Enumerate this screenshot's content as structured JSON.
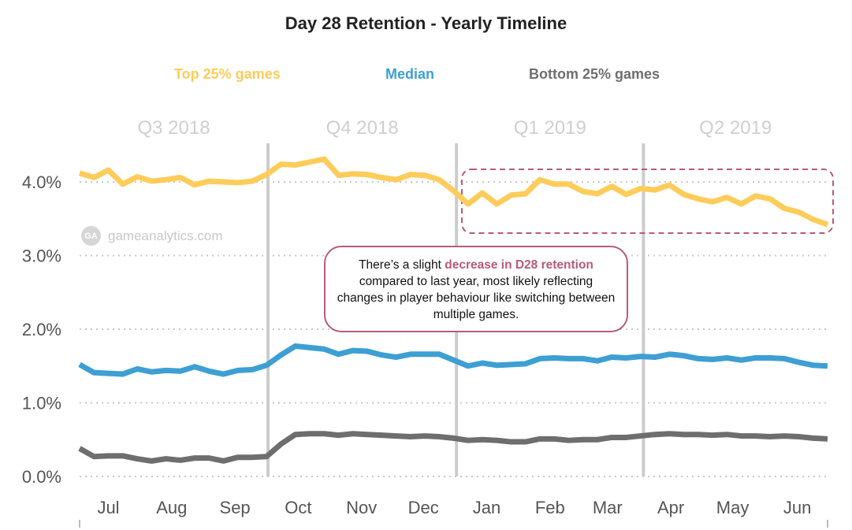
{
  "chart_data": {
    "type": "line",
    "title": "Day 28 Retention - Yearly Timeline",
    "xlabel": "",
    "ylabel": "",
    "ylim": [
      0,
      4.0
    ],
    "yticks": [
      0,
      1,
      2,
      3,
      4
    ],
    "ytick_labels": [
      "0.0%",
      "1.0%",
      "2.0%",
      "3.0%",
      "4.0%"
    ],
    "x_unit": "week index (0 = start of Jul 2018)",
    "x_range": [
      0,
      52
    ],
    "month_labels": [
      {
        "label": "Jul",
        "x": 2.0
      },
      {
        "label": "Aug",
        "x": 6.4
      },
      {
        "label": "Sep",
        "x": 10.8
      },
      {
        "label": "Oct",
        "x": 15.2
      },
      {
        "label": "Nov",
        "x": 19.6
      },
      {
        "label": "Dec",
        "x": 23.9
      },
      {
        "label": "Jan",
        "x": 28.3
      },
      {
        "label": "Feb",
        "x": 32.7
      },
      {
        "label": "Mar",
        "x": 36.7
      },
      {
        "label": "Apr",
        "x": 41.1
      },
      {
        "label": "May",
        "x": 45.4
      },
      {
        "label": "Jun",
        "x": 49.9
      }
    ],
    "quarters": [
      {
        "label": "Q3 2018",
        "start": 0,
        "end": 13.1
      },
      {
        "label": "Q4 2018",
        "start": 13.1,
        "end": 26.2
      },
      {
        "label": "Q1 2019",
        "start": 26.2,
        "end": 39.2
      },
      {
        "label": "Q2 2019",
        "start": 39.2,
        "end": 52
      }
    ],
    "grid": true,
    "legend_position": "top",
    "series": [
      {
        "name": "Top 25% games",
        "color": "#fdcc5a",
        "values": [
          4.12,
          4.06,
          4.16,
          3.97,
          4.07,
          4.01,
          4.03,
          4.06,
          3.96,
          4.01,
          4.0,
          3.99,
          4.01,
          4.1,
          4.24,
          4.23,
          4.27,
          4.31,
          4.09,
          4.11,
          4.1,
          4.06,
          4.03,
          4.1,
          4.09,
          4.03,
          3.88,
          3.7,
          3.85,
          3.7,
          3.82,
          3.84,
          4.03,
          3.97,
          3.97,
          3.87,
          3.84,
          3.94,
          3.83,
          3.91,
          3.89,
          3.96,
          3.83,
          3.77,
          3.73,
          3.79,
          3.7,
          3.81,
          3.77,
          3.64,
          3.59,
          3.49,
          3.42
        ]
      },
      {
        "name": "Median",
        "color": "#3d9fd3",
        "values": [
          1.52,
          1.41,
          1.4,
          1.39,
          1.46,
          1.42,
          1.44,
          1.43,
          1.49,
          1.43,
          1.39,
          1.44,
          1.45,
          1.51,
          1.65,
          1.77,
          1.75,
          1.73,
          1.66,
          1.71,
          1.7,
          1.65,
          1.62,
          1.66,
          1.66,
          1.66,
          1.58,
          1.5,
          1.54,
          1.51,
          1.52,
          1.53,
          1.6,
          1.61,
          1.6,
          1.6,
          1.57,
          1.62,
          1.61,
          1.63,
          1.62,
          1.66,
          1.64,
          1.6,
          1.59,
          1.61,
          1.58,
          1.61,
          1.61,
          1.6,
          1.55,
          1.51,
          1.5
        ]
      },
      {
        "name": "Bottom 25% games",
        "color": "#6e6e6e",
        "values": [
          0.38,
          0.27,
          0.28,
          0.28,
          0.24,
          0.21,
          0.24,
          0.22,
          0.25,
          0.25,
          0.21,
          0.26,
          0.26,
          0.27,
          0.44,
          0.57,
          0.58,
          0.58,
          0.56,
          0.58,
          0.57,
          0.56,
          0.55,
          0.54,
          0.55,
          0.54,
          0.52,
          0.49,
          0.5,
          0.49,
          0.47,
          0.47,
          0.51,
          0.51,
          0.49,
          0.5,
          0.5,
          0.53,
          0.53,
          0.55,
          0.57,
          0.58,
          0.57,
          0.57,
          0.56,
          0.57,
          0.55,
          0.55,
          0.54,
          0.55,
          0.54,
          0.52,
          0.51
        ]
      }
    ],
    "annotation": {
      "highlight_color": "#b85a7c",
      "text_before": "There’s a slight ",
      "text_highlight": "decrease in D28 retention",
      "text_after": " compared to last year, most likely reflecting changes in player behaviour like switching between multiple games."
    }
  },
  "watermark": {
    "logo": "GA",
    "text": "gameanalytics.com"
  }
}
